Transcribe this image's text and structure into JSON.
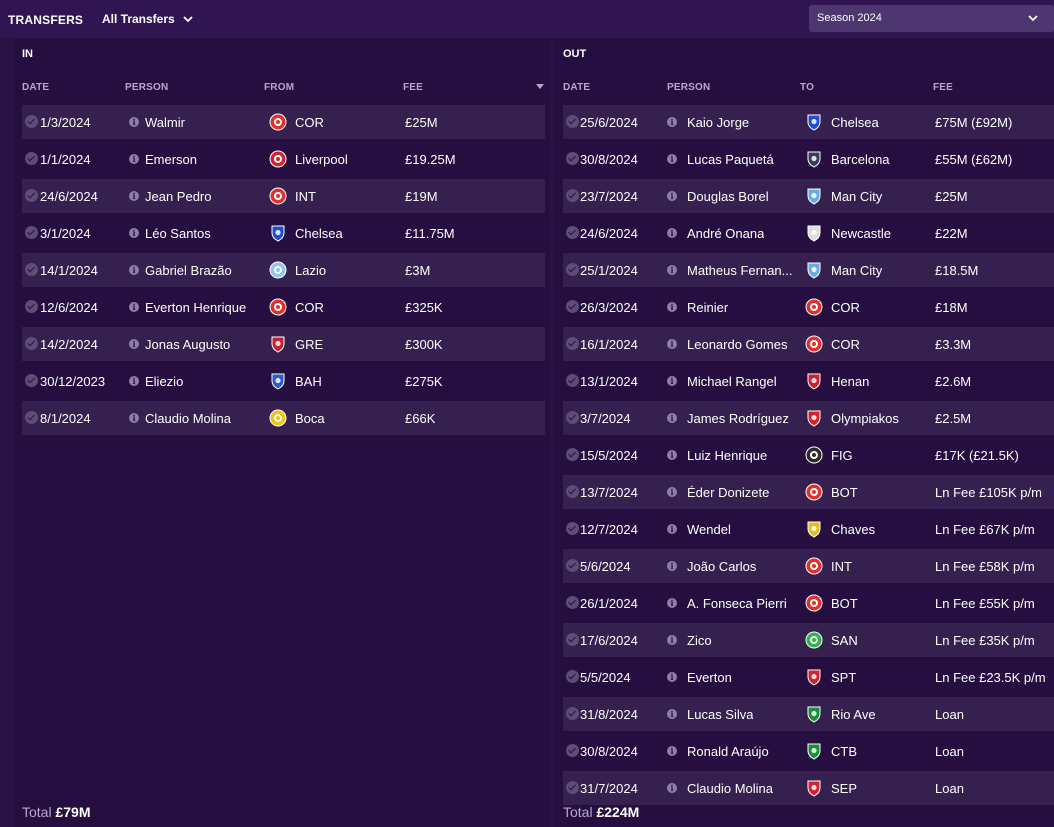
{
  "header": {
    "title": "TRANSFERS",
    "filter_label": "All Transfers",
    "season_label": "Season 2024"
  },
  "in": {
    "title": "IN",
    "columns": {
      "date": "DATE",
      "person": "PERSON",
      "club": "FROM",
      "fee": "FEE"
    },
    "rows": [
      {
        "date": "1/3/2024",
        "person": "Walmir",
        "club": "COR",
        "fee": "£25M",
        "badge": "cor-badge-icon"
      },
      {
        "date": "1/1/2024",
        "person": "Emerson",
        "club": "Liverpool",
        "fee": "£19.25M",
        "badge": "liverpool-badge-icon"
      },
      {
        "date": "24/6/2024",
        "person": "Jean Pedro",
        "club": "INT",
        "fee": "£19M",
        "badge": "int-badge-icon"
      },
      {
        "date": "3/1/2024",
        "person": "Léo Santos",
        "club": "Chelsea",
        "fee": "£11.75M",
        "badge": "chelsea-badge-icon"
      },
      {
        "date": "14/1/2024",
        "person": "Gabriel Brazão",
        "club": "Lazio",
        "fee": "£3M",
        "badge": "lazio-badge-icon"
      },
      {
        "date": "12/6/2024",
        "person": "Everton Henrique",
        "club": "COR",
        "fee": "£325K",
        "badge": "cor-badge-icon"
      },
      {
        "date": "14/2/2024",
        "person": "Jonas Augusto",
        "club": "GRE",
        "fee": "£300K",
        "badge": "gre-badge-icon"
      },
      {
        "date": "30/12/2023",
        "person": "Eliezio",
        "club": "BAH",
        "fee": "£275K",
        "badge": "bah-badge-icon"
      },
      {
        "date": "8/1/2024",
        "person": "Claudio Molina",
        "club": "Boca",
        "fee": "£66K",
        "badge": "boca-badge-icon"
      }
    ],
    "total_label": "Total",
    "total_value": "£79M"
  },
  "out": {
    "title": "OUT",
    "columns": {
      "date": "DATE",
      "person": "PERSON",
      "club": "TO",
      "fee": "FEE"
    },
    "rows": [
      {
        "date": "25/6/2024",
        "person": "Kaio Jorge",
        "club": "Chelsea",
        "fee": "£75M (£92M)",
        "badge": "chelsea-badge-icon"
      },
      {
        "date": "30/8/2024",
        "person": "Lucas Paquetá",
        "club": "Barcelona",
        "fee": "£55M (£62M)",
        "badge": "barcelona-badge-icon"
      },
      {
        "date": "23/7/2024",
        "person": "Douglas Borel",
        "club": "Man City",
        "fee": "£25M",
        "badge": "man-city-badge-icon"
      },
      {
        "date": "24/6/2024",
        "person": "André Onana",
        "club": "Newcastle",
        "fee": "£22M",
        "badge": "newcastle-badge-icon"
      },
      {
        "date": "25/1/2024",
        "person": "Matheus Fernan...",
        "club": "Man City",
        "fee": "£18.5M",
        "badge": "man-city-badge-icon"
      },
      {
        "date": "26/3/2024",
        "person": "Reinier",
        "club": "COR",
        "fee": "£18M",
        "badge": "cor-badge-icon"
      },
      {
        "date": "16/1/2024",
        "person": "Leonardo Gomes",
        "club": "COR",
        "fee": "£3.3M",
        "badge": "cor-badge-icon"
      },
      {
        "date": "13/1/2024",
        "person": "Michael Rangel",
        "club": "Henan",
        "fee": "£2.6M",
        "badge": "henan-badge-icon"
      },
      {
        "date": "3/7/2024",
        "person": "James Rodríguez",
        "club": "Olympiakos",
        "fee": "£2.5M",
        "badge": "olympiakos-badge-icon"
      },
      {
        "date": "15/5/2024",
        "person": "Luiz Henrique",
        "club": "FIG",
        "fee": "£17K (£21.5K)",
        "badge": "fig-badge-icon"
      },
      {
        "date": "13/7/2024",
        "person": "Éder Donizete",
        "club": "BOT",
        "fee": "Ln Fee £105K p/m",
        "badge": "bot-badge-icon"
      },
      {
        "date": "12/7/2024",
        "person": "Wendel",
        "club": "Chaves",
        "fee": "Ln Fee £67K p/m",
        "badge": "chaves-badge-icon"
      },
      {
        "date": "5/6/2024",
        "person": "João Carlos",
        "club": "INT",
        "fee": "Ln Fee £58K p/m",
        "badge": "int-badge-icon"
      },
      {
        "date": "26/1/2024",
        "person": "A. Fonseca Pierri",
        "club": "BOT",
        "fee": "Ln Fee £55K p/m",
        "badge": "bot-badge-icon"
      },
      {
        "date": "17/6/2024",
        "person": "Zico",
        "club": "SAN",
        "fee": "Ln Fee £35K p/m",
        "badge": "san-badge-icon"
      },
      {
        "date": "5/5/2024",
        "person": "Everton",
        "club": "SPT",
        "fee": "Ln Fee £23.5K p/m",
        "badge": "spt-badge-icon"
      },
      {
        "date": "31/8/2024",
        "person": "Lucas Silva",
        "club": "Rio Ave",
        "fee": "Loan",
        "badge": "rio-ave-badge-icon"
      },
      {
        "date": "30/8/2024",
        "person": "Ronald Araújo",
        "club": "CTB",
        "fee": "Loan",
        "badge": "ctb-badge-icon"
      },
      {
        "date": "31/7/2024",
        "person": "Claudio Molina",
        "club": "SEP",
        "fee": "Loan",
        "badge": "sep-badge-icon"
      }
    ],
    "total_label": "Total",
    "total_value": "£224M"
  },
  "badge_colors": {
    "cor-badge-icon": "#e0312f",
    "liverpool-badge-icon": "#d12230",
    "int-badge-icon": "#e0312f",
    "chelsea-badge-icon": "#1f4fd1",
    "lazio-badge-icon": "#8fc6f0",
    "gre-badge-icon": "#c8202f",
    "bah-badge-icon": "#2c5bc4",
    "boca-badge-icon": "#f1c40f",
    "barcelona-badge-icon": "#3a3a5a",
    "man-city-badge-icon": "#6cabdd",
    "newcastle-badge-icon": "#dddddd",
    "henan-badge-icon": "#d02030",
    "olympiakos-badge-icon": "#d8202c",
    "fig-badge-icon": "#2a2a2a",
    "bot-badge-icon": "#e0312f",
    "chaves-badge-icon": "#e0c020",
    "san-badge-icon": "#2db34a",
    "spt-badge-icon": "#d12230",
    "rio-ave-badge-icon": "#1a8f3a",
    "ctb-badge-icon": "#1a8f3a",
    "sep-badge-icon": "#d12230"
  }
}
